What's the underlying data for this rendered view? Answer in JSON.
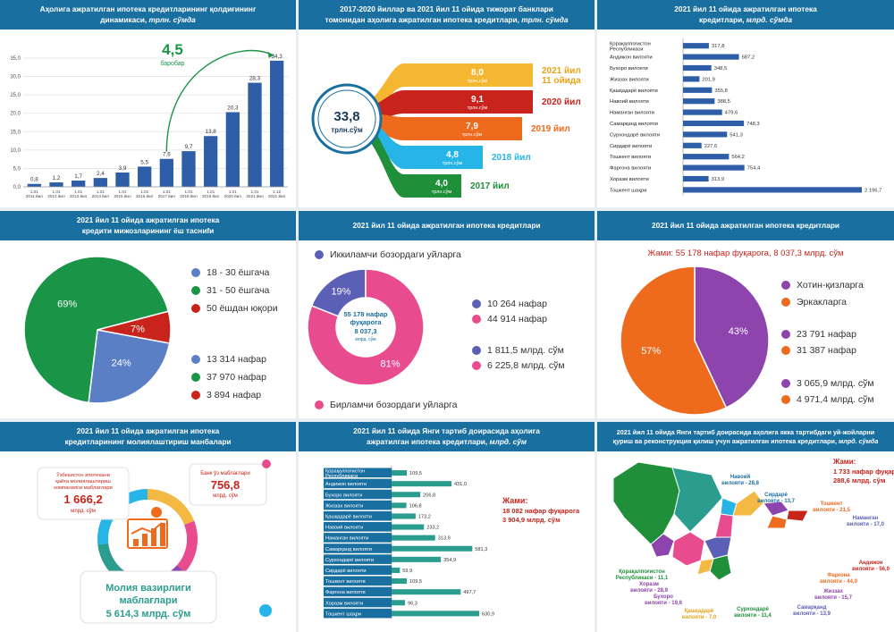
{
  "colors": {
    "header": "#1a6fa1",
    "barBlue": "#2f5ea8",
    "green": "#1a9447",
    "teal": "#2a9d8f",
    "yellow": "#f5b731",
    "red": "#c8241c",
    "orange": "#ee6a1d",
    "cyan": "#26b5e6",
    "darkgreen": "#1f8f3a",
    "purple": "#8e44ad",
    "pink": "#e94b8f",
    "gray": "#7a7a7a"
  },
  "panels": {
    "p1": {
      "title": "Аҳолига ажратилган ипотека кредитларининг қолдиғининг",
      "title2": "динамикаси,",
      "unit": "трлн. сўмда"
    },
    "p2": {
      "title": "2017-2020 йиллар ва 2021 йил 11 ойида тижорат банклари",
      "title2": "томонидан аҳолига ажратилган ипотека кредитлари,",
      "unit": "трлн. сўмда"
    },
    "p3": {
      "title": "2021 йил 11 ойида ажратилган ипотека",
      "title2": "кредитлари,",
      "unit": "млрд. сўмда"
    },
    "p4": {
      "title": "2021 йил 11 ойида ажратилган ипотека",
      "title2": "кредити мижозларининг ёш тасниfи"
    },
    "p5": {
      "title": "2021 йил 11 ойида ажратилган ипотека кредитлари"
    },
    "p6": {
      "title": "2021 йил 11 ойида ажратилган ипотека кредитлари"
    },
    "p7": {
      "title": "2021 йил 11 ойида ажратилган ипотека",
      "title2": "кредитларининг молиялаштириш манбалари"
    },
    "p8": {
      "title": "2021 йил 11 ойида Янги тартиб доирасида аҳолига",
      "title2": "ажратилган ипотека кредитлари,",
      "unit": "млрд. сўм"
    },
    "p9": {
      "title": "2021 йил 11 ойида Янги тартиб доирасида аҳолига якка тартибдаги уй-жойларни",
      "title2": "қуриш ва реконструкция қилиш учун ажратилган ипотека кредитлари,",
      "unit": "млрд. сўмда"
    }
  },
  "chart_data": [
    {
      "type": "bar",
      "id": "p1",
      "categories": [
        "1.01 2011 йил",
        "1.01 2012 йил",
        "1.01 2013 йил",
        "1.01 2014 йил",
        "1.01 2015 йил",
        "1.01 2016 йил",
        "1.01 2017 йил",
        "1.01 2018 йил",
        "1.01 2019 йил",
        "1.01 2020 йил",
        "1.01 2021 йил",
        "1.12 2021 йил"
      ],
      "values": [
        0.8,
        1.2,
        1.7,
        2.4,
        3.9,
        5.5,
        7.6,
        9.7,
        13.8,
        20.3,
        28.3,
        34.3
      ],
      "labels": [
        "0,8",
        "1,2",
        "1,7",
        "2,4",
        "3,9",
        "5,5",
        "7,6",
        "9,7",
        "13,8",
        "20,3",
        "28,3",
        "34,3"
      ],
      "ylim": [
        0,
        35
      ],
      "yticks": [
        "0,0",
        "5,0",
        "10,0",
        "15,0",
        "20,0",
        "25,0",
        "30,0",
        "35,0"
      ],
      "annotation": "4,5",
      "annotation_sub": "баробар"
    },
    {
      "type": "bar",
      "id": "p2",
      "total": "33,8",
      "total_unit": "трлн.сўм",
      "items": [
        {
          "value": "8,0",
          "unit": "трлн.сўм",
          "label": "2021 йил",
          "label2": "11 ойида"
        },
        {
          "value": "9,1",
          "unit": "трлн.сўм",
          "label": "2020 йил"
        },
        {
          "value": "7,9",
          "unit": "трлн.сўм",
          "label": "2019 йил"
        },
        {
          "value": "4,8",
          "unit": "трлн.сўм",
          "label": "2018 йил"
        },
        {
          "value": "4,0",
          "unit": "трлн.сўм",
          "label": "2017 йил"
        }
      ]
    },
    {
      "type": "bar",
      "id": "p3",
      "categories": [
        "Қорақалпоғистон Республикаси",
        "Андижон вилояти",
        "Бухоро вилояти",
        "Жиззах вилояти",
        "Қашқадарё вилояти",
        "Навоий вилояти",
        "Наманган вилояти",
        "Самарқанд вилояти",
        "Сурхондарё вилояти",
        "Сирдарё вилояти",
        "Тошкент вилояти",
        "Фарғона вилояти",
        "Хоразм вилояти",
        "Тошкент шаҳри"
      ],
      "values": [
        317.8,
        687.2,
        348.5,
        201.9,
        355.8,
        388.5,
        479.6,
        748.3,
        541.3,
        227.6,
        564.2,
        754.4,
        313.9,
        2196.7
      ],
      "labels": [
        "317,8",
        "687,2",
        "348,5",
        "201,9",
        "355,8",
        "388,5",
        "479,6",
        "748,3",
        "541,3",
        "227,6",
        "564,2",
        "754,4",
        "313,9",
        "2 196,7"
      ]
    },
    {
      "type": "pie",
      "id": "p4",
      "values": [
        24,
        69,
        7
      ],
      "labels": [
        "24%",
        "69%",
        "7%"
      ],
      "legend": [
        "18 - 30 ёшгача",
        "31 - 50 ёшгача",
        "50 ёшдан юқори"
      ],
      "counts": [
        "13 314 нафар",
        "37 970 нафар",
        "3 894 нафар"
      ]
    },
    {
      "type": "pie",
      "id": "p5",
      "values": [
        19,
        81
      ],
      "labels": [
        "19%",
        "81%"
      ],
      "legend": [
        "Иккиламчи бозордаги уйларга",
        "Бирламчи бозордаги уйларга"
      ],
      "counts": [
        "10 264 нафар",
        "44 914 нафар"
      ],
      "amounts": [
        "1 811,5 млрд. сўм",
        "6 225,8 млрд. сўм"
      ],
      "center": [
        "55 178 нафар",
        "фуқарога",
        "8 037,3",
        "млрд. сўм"
      ]
    },
    {
      "type": "pie",
      "id": "p6",
      "values": [
        43,
        57
      ],
      "labels": [
        "43%",
        "57%"
      ],
      "total": "Жами: 55 178 нафар фуқарога, 8 037,3 млрд. сўм",
      "legend": [
        "Хотин-қизларга",
        "Эркакларга"
      ],
      "counts": [
        "23 791 нафар",
        "31 387 нафар"
      ],
      "amounts": [
        "3 065,9 млрд. сўм",
        "4 971,4 млрд. сўм"
      ]
    },
    {
      "type": "pie",
      "id": "p7",
      "sources": [
        {
          "label": "Ўзбекистон ипотекани қайта молиялаштириш компанияси маблағлари",
          "value": "1 666,2",
          "unit": "млрд. сўм"
        },
        {
          "label": "Банк ўз маблағлари",
          "value": "756,8",
          "unit": "млрд. сўм"
        },
        {
          "label": "Молия вазирлиги маблағлари",
          "value": "5 614,3 млрд. сўм"
        }
      ]
    },
    {
      "type": "bar",
      "id": "p8",
      "categories": [
        "Қорақалпоғистон Республикаси",
        "Андижон вилояти",
        "Бухоро вилояти",
        "Жиззах вилояти",
        "Қашқадарё вилояти",
        "Навоий вилояти",
        "Наманган вилояти",
        "Самарқанд вилояти",
        "Сурхондарё вилояти",
        "Сирдарё вилояти",
        "Тошкент вилояти",
        "Фарғона вилояти",
        "Хоразм вилояти",
        "Тошкент шаҳри"
      ],
      "values": [
        109.5,
        431.0,
        206.8,
        106.8,
        173.2,
        233.2,
        313.9,
        581.3,
        354.9,
        59.9,
        109.5,
        497.7,
        96.3,
        630.9
      ],
      "labels": [
        "109,5",
        "431,0",
        "206,8",
        "106,8",
        "173,2",
        "233,2",
        "313,9",
        "581,3",
        "354,9",
        "59,9",
        "109,5",
        "497,7",
        "96,3",
        "630,9"
      ],
      "total_title": "Жами:",
      "total_line1": "18 082 нафар фуқарога",
      "total_line2": "3 904,9 млрд. сўм"
    },
    {
      "type": "table",
      "id": "p9",
      "total_title": "Жами:",
      "total_line1": "1 733  нафар фуқарога",
      "total_line2": "288,6 млрд. сўм",
      "regions": [
        {
          "name": "Қорақалпоғистон",
          "name2": "Республикаси - 11,1"
        },
        {
          "name": "Хоразм",
          "name2": "вилояти - 28,9"
        },
        {
          "name": "Бухоро",
          "name2": "вилояти - 19,6"
        },
        {
          "name": "Навоий",
          "name2": "вилояти - 28,8"
        },
        {
          "name": "Сирдарё",
          "name2": "вилояти - 13,7"
        },
        {
          "name": "Тошкент",
          "name2": "вилояти - 21,5"
        },
        {
          "name": "Наманган",
          "name2": "вилояти - 17,0"
        },
        {
          "name": "Андижон",
          "name2": "вилояти - 56,0"
        },
        {
          "name": "Фарғона",
          "name2": "вилояти - 44,0"
        },
        {
          "name": "Жиззах",
          "name2": "вилояти - 15,7"
        },
        {
          "name": "Самарқанд",
          "name2": "вилояти - 13,9"
        },
        {
          "name": "Сурхондарё",
          "name2": "вилояти - 11,4"
        },
        {
          "name": "Қашқадарё",
          "name2": "вилояти - 7,0"
        }
      ]
    }
  ]
}
